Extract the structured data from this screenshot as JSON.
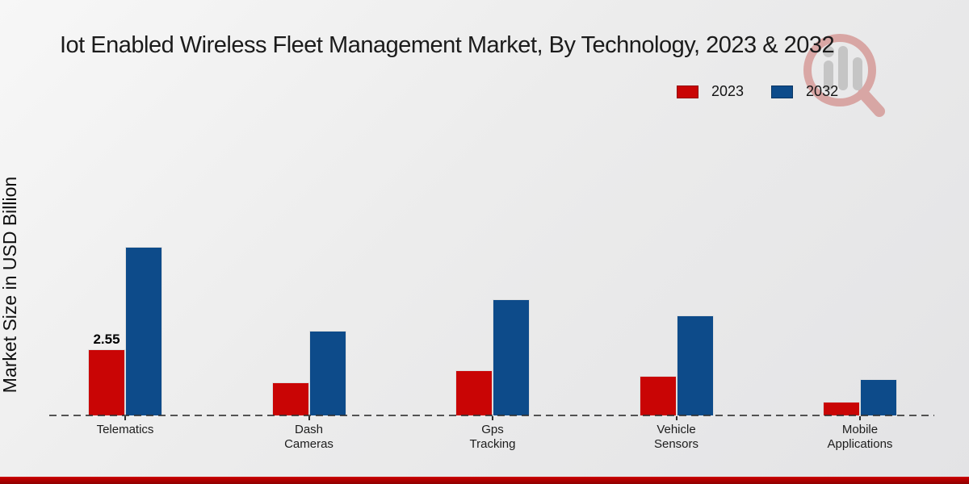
{
  "chart_data": {
    "type": "bar",
    "title": "Iot Enabled Wireless Fleet Management Market, By Technology, 2023 & 2032",
    "ylabel": "Market Size in USD Billion",
    "xlabel": "",
    "categories": [
      "Telematics",
      "Dash Cameras",
      "Gps Tracking",
      "Vehicle Sensors",
      "Mobile Applications"
    ],
    "series": [
      {
        "name": "2023",
        "color": "#c90505",
        "values": [
          2.55,
          1.27,
          1.74,
          1.52,
          0.53
        ]
      },
      {
        "name": "2032",
        "color": "#0d4b8a",
        "values": [
          6.5,
          3.26,
          4.48,
          3.86,
          1.4
        ]
      }
    ],
    "annotations": [
      {
        "series_index": 0,
        "category_index": 0,
        "text": "2.55"
      }
    ],
    "ylim": [
      0,
      7
    ],
    "grid": false,
    "legend_position": "top-right",
    "baseline_style": "dashed"
  },
  "watermark": {
    "icon": "magnifier-bar-chart-logo",
    "glass_color": "#c0443e",
    "bars_color": "#909090"
  },
  "footer": {
    "accent_color_top": "#cc0000",
    "accent_color_bottom": "#8f0000"
  }
}
